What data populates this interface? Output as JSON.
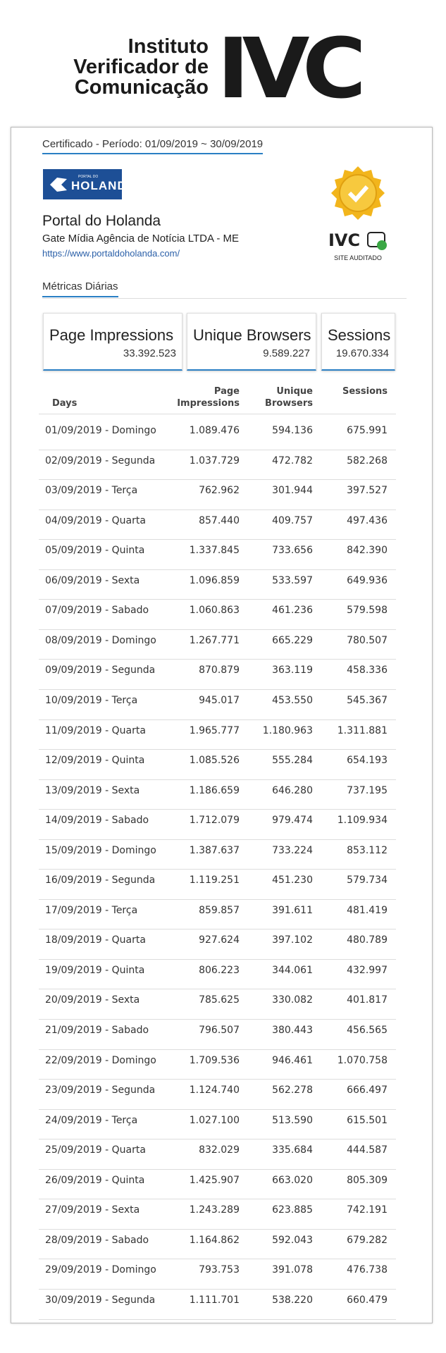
{
  "logo": {
    "lines": [
      "Instituto",
      "Verificador de",
      "Comunicação"
    ],
    "mark": "IVC"
  },
  "card": {
    "period": "Certificado - Período: 01/09/2019 ~ 30/09/2019",
    "site_logo": {
      "small": "PORTAL DO",
      "text": "HOLANDA"
    },
    "site_name": "Portal do Holanda",
    "company": "Gate Mídia Agência de Notícia LTDA - ME",
    "url": "https://www.portaldoholanda.com/",
    "seal": {
      "mark": "IVC",
      "caption": "SITE AUDITADO"
    },
    "section": "Métricas Diárias",
    "summary": [
      {
        "label": "Page Impressions",
        "value": "33.392.523"
      },
      {
        "label": "Unique Browsers",
        "value": "9.589.227"
      },
      {
        "label": "Sessions",
        "value": "19.670.334"
      }
    ],
    "table": {
      "columns": [
        "Days",
        "Page Impressions",
        "Unique Browsers",
        "Sessions"
      ],
      "rows": [
        [
          "01/09/2019 - Domingo",
          "1.089.476",
          "594.136",
          "675.991"
        ],
        [
          "02/09/2019 - Segunda",
          "1.037.729",
          "472.782",
          "582.268"
        ],
        [
          "03/09/2019 - Terça",
          "762.962",
          "301.944",
          "397.527"
        ],
        [
          "04/09/2019 - Quarta",
          "857.440",
          "409.757",
          "497.436"
        ],
        [
          "05/09/2019 - Quinta",
          "1.337.845",
          "733.656",
          "842.390"
        ],
        [
          "06/09/2019 - Sexta",
          "1.096.859",
          "533.597",
          "649.936"
        ],
        [
          "07/09/2019 - Sabado",
          "1.060.863",
          "461.236",
          "579.598"
        ],
        [
          "08/09/2019 - Domingo",
          "1.267.771",
          "665.229",
          "780.507"
        ],
        [
          "09/09/2019 - Segunda",
          "870.879",
          "363.119",
          "458.336"
        ],
        [
          "10/09/2019 - Terça",
          "945.017",
          "453.550",
          "545.367"
        ],
        [
          "11/09/2019 - Quarta",
          "1.965.777",
          "1.180.963",
          "1.311.881"
        ],
        [
          "12/09/2019 - Quinta",
          "1.085.526",
          "555.284",
          "654.193"
        ],
        [
          "13/09/2019 - Sexta",
          "1.186.659",
          "646.280",
          "737.195"
        ],
        [
          "14/09/2019 - Sabado",
          "1.712.079",
          "979.474",
          "1.109.934"
        ],
        [
          "15/09/2019 - Domingo",
          "1.387.637",
          "733.224",
          "853.112"
        ],
        [
          "16/09/2019 - Segunda",
          "1.119.251",
          "451.230",
          "579.734"
        ],
        [
          "17/09/2019 - Terça",
          "859.857",
          "391.611",
          "481.419"
        ],
        [
          "18/09/2019 - Quarta",
          "927.624",
          "397.102",
          "480.789"
        ],
        [
          "19/09/2019 - Quinta",
          "806.223",
          "344.061",
          "432.997"
        ],
        [
          "20/09/2019 - Sexta",
          "785.625",
          "330.082",
          "401.817"
        ],
        [
          "21/09/2019 - Sabado",
          "796.507",
          "380.443",
          "456.565"
        ],
        [
          "22/09/2019 - Domingo",
          "1.709.536",
          "946.461",
          "1.070.758"
        ],
        [
          "23/09/2019 - Segunda",
          "1.124.740",
          "562.278",
          "666.497"
        ],
        [
          "24/09/2019 - Terça",
          "1.027.100",
          "513.590",
          "615.501"
        ],
        [
          "25/09/2019 - Quarta",
          "832.029",
          "335.684",
          "444.587"
        ],
        [
          "26/09/2019 - Quinta",
          "1.425.907",
          "663.020",
          "805.309"
        ],
        [
          "27/09/2019 - Sexta",
          "1.243.289",
          "623.885",
          "742.191"
        ],
        [
          "28/09/2019 - Sabado",
          "1.164.862",
          "592.043",
          "679.282"
        ],
        [
          "29/09/2019 - Domingo",
          "793.753",
          "391.078",
          "476.738"
        ],
        [
          "30/09/2019 - Segunda",
          "1.111.701",
          "538.220",
          "660.479"
        ]
      ]
    }
  }
}
